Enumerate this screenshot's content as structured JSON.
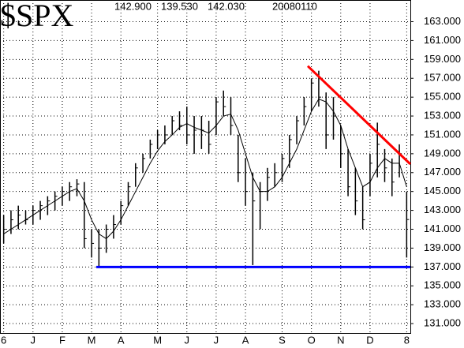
{
  "chart_data": {
    "type": "ohlc",
    "title": "$SPX",
    "quote": [
      "142.900",
      "139.530",
      "142.030"
    ],
    "date": "20080110",
    "categories": [
      "6",
      null,
      null,
      null,
      "J",
      null,
      null,
      null,
      "F",
      null,
      null,
      null,
      "M",
      null,
      null,
      null,
      "A",
      null,
      null,
      null,
      null,
      "M",
      null,
      null,
      null,
      "J",
      null,
      null,
      null,
      "J",
      null,
      null,
      null,
      "A",
      null,
      null,
      null,
      null,
      "S",
      null,
      null,
      null,
      "O",
      null,
      null,
      null,
      "N",
      null,
      null,
      null,
      "D",
      null,
      null,
      null,
      null,
      "8"
    ],
    "high": [
      142.5,
      143,
      143.5,
      143,
      143.5,
      144,
      144.5,
      145,
      145.5,
      146,
      146.3,
      146,
      141,
      141,
      141.5,
      142.5,
      144,
      146,
      148,
      149,
      150.5,
      151.5,
      152,
      153,
      153.5,
      154,
      153,
      153,
      152.5,
      155,
      155.7,
      155,
      151,
      148.5,
      147,
      146,
      147.5,
      148,
      149,
      151,
      153,
      155,
      157,
      157.8,
      155.5,
      155,
      152,
      149.5,
      147.5,
      145.5,
      149,
      152.3,
      149.5,
      148.5,
      150,
      145
    ],
    "low": [
      139.5,
      140.5,
      141,
      141.5,
      141.5,
      142,
      142.5,
      143,
      143.5,
      144,
      144.5,
      139,
      138,
      137,
      138.5,
      140,
      141.5,
      143.5,
      145.5,
      147,
      148.5,
      149.5,
      150,
      151,
      151.5,
      150,
      149,
      149.5,
      149,
      151,
      153,
      151,
      146,
      143.5,
      137.2,
      141,
      144,
      145.5,
      146,
      147.5,
      150,
      152,
      153.5,
      154,
      149.5,
      150.5,
      147.5,
      144.5,
      142.5,
      141,
      144.5,
      146.5,
      146,
      144.5,
      146.5,
      138
    ],
    "close": [
      141,
      142,
      142.5,
      142,
      143,
      143.5,
      144,
      144.5,
      145,
      145.5,
      145.8,
      140,
      139.5,
      139,
      141,
      141.5,
      143.5,
      145.5,
      147.5,
      148.5,
      150,
      151,
      151,
      152.5,
      152,
      151,
      151.5,
      151.5,
      150,
      154.5,
      154,
      152,
      147,
      145,
      144,
      145,
      146.5,
      147,
      148.5,
      150.5,
      152.5,
      154,
      156.5,
      155,
      151,
      153,
      149,
      145.5,
      144,
      142,
      148,
      150,
      147.5,
      146,
      149,
      142.03
    ],
    "moving_average": [
      140.5,
      141,
      141.5,
      142,
      142.5,
      143,
      143.5,
      144,
      144.5,
      145,
      145.3,
      144,
      142,
      140.5,
      140,
      140.8,
      142,
      143.5,
      145,
      146.5,
      148,
      149.3,
      150.3,
      151,
      151.8,
      152.2,
      151.8,
      151.5,
      151.2,
      152,
      153,
      153.2,
      151.5,
      149,
      146.5,
      145,
      145,
      145.5,
      146.5,
      148,
      149.5,
      151.5,
      153.5,
      154.8,
      154.5,
      153.5,
      152,
      149.5,
      147.5,
      145.5,
      146,
      147.5,
      148.5,
      148,
      148,
      145.5
    ],
    "color": "#000000",
    "trend_lines": [
      {
        "color": "#ff0000",
        "values": [
          158.3,
          147.9
        ]
      },
      {
        "color": "#0000ff",
        "values": [
          137,
          137
        ]
      }
    ],
    "ylim": [
      130,
      165.3
    ],
    "yticks": [
      {
        "value": 131,
        "label": "131.000"
      },
      {
        "value": 133,
        "label": "133.000"
      },
      {
        "value": 135,
        "label": "135.000"
      },
      {
        "value": 137,
        "label": "137.000"
      },
      {
        "value": 139,
        "label": "139.000"
      },
      {
        "value": 141,
        "label": "141.000"
      },
      {
        "value": 143,
        "label": "143.000"
      },
      {
        "value": 145,
        "label": "145.000"
      },
      {
        "value": 147,
        "label": "147.000"
      },
      {
        "value": 149,
        "label": "149.000"
      },
      {
        "value": 151,
        "label": "151.000"
      },
      {
        "value": 153,
        "label": "153.000"
      },
      {
        "value": 155,
        "label": "155.000"
      },
      {
        "value": 157,
        "label": "157.000"
      },
      {
        "value": 159,
        "label": "159.000"
      },
      {
        "value": 161,
        "label": "161.000"
      },
      {
        "value": 163,
        "label": "163.000"
      }
    ],
    "grid": true
  }
}
